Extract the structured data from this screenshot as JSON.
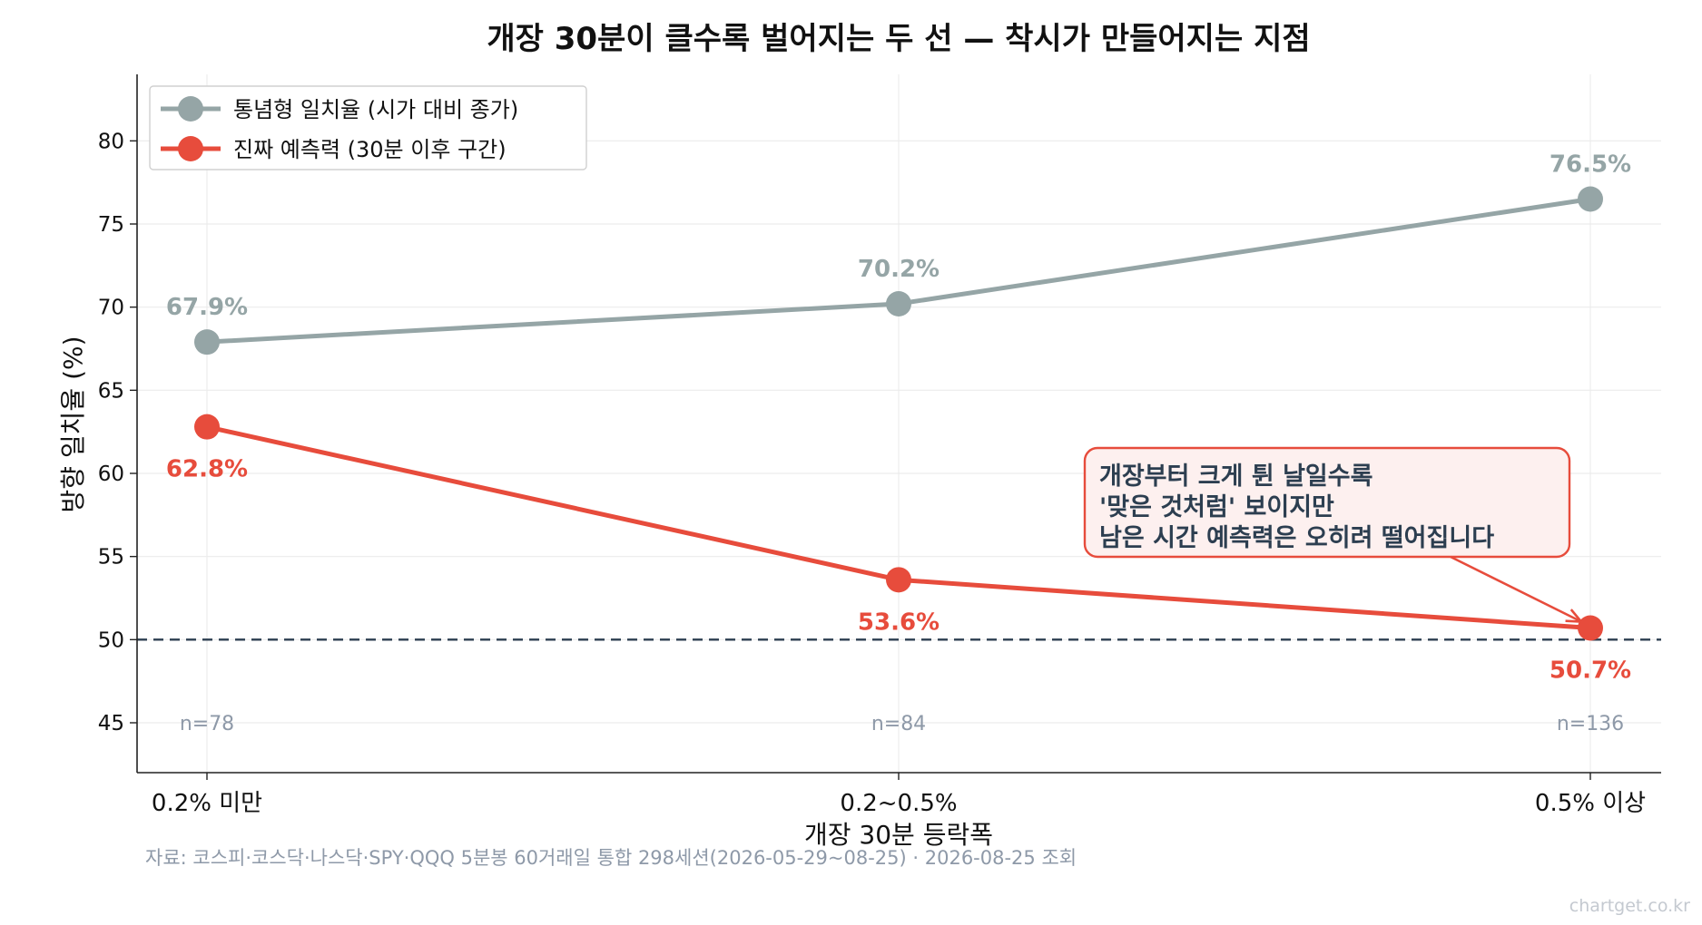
{
  "chart_data": {
    "type": "line",
    "title": "개장 30분이 클수록 벌어지는 두 선 — 착시가 만들어지는 지점",
    "xlabel": "개장 30분 등락폭",
    "ylabel": "방향 일치율 (%)",
    "categories": [
      "0.2% 미만",
      "0.2~0.5%",
      "0.5% 이상"
    ],
    "ylim": [
      42,
      84
    ],
    "yticks": [
      45,
      50,
      55,
      60,
      65,
      70,
      75,
      80
    ],
    "grid": true,
    "legend_position": "top-left",
    "series": [
      {
        "name": "통념형 일치율 (시가 대비 종가)",
        "color": "#95a5a6",
        "values": [
          67.9,
          70.2,
          76.5
        ],
        "labels": [
          "67.9%",
          "70.2%",
          "76.5%"
        ],
        "label_side": "above"
      },
      {
        "name": "진짜 예측력 (30분 이후 구간)",
        "color": "#e74c3c",
        "values": [
          62.8,
          53.6,
          50.7
        ],
        "labels": [
          "62.8%",
          "53.6%",
          "50.7%"
        ],
        "label_side": "below"
      }
    ],
    "reference_line": {
      "y": 50,
      "color": "#2c3e50",
      "style": "dashed"
    },
    "sample_sizes": [
      "n=78",
      "n=84",
      "n=136"
    ],
    "annotation": {
      "lines": [
        "개장부터 크게 튄 날일수록",
        "'맞은 것처럼' 보이지만",
        "남은 시간 예측력은 오히려 떨어집니다"
      ],
      "target": {
        "category_index": 2,
        "value": 50.7
      },
      "border_color": "#e74c3c",
      "fill_color": "#fdf0ef",
      "text_color": "#2c3e50"
    },
    "source": "자료: 코스피·코스닥·나스닥·SPY·QQQ 5분봉 60거래일 통합 298세션(2026-05-29~08-25) · 2026-08-25 조회",
    "watermark": "chartget.co.kr"
  }
}
